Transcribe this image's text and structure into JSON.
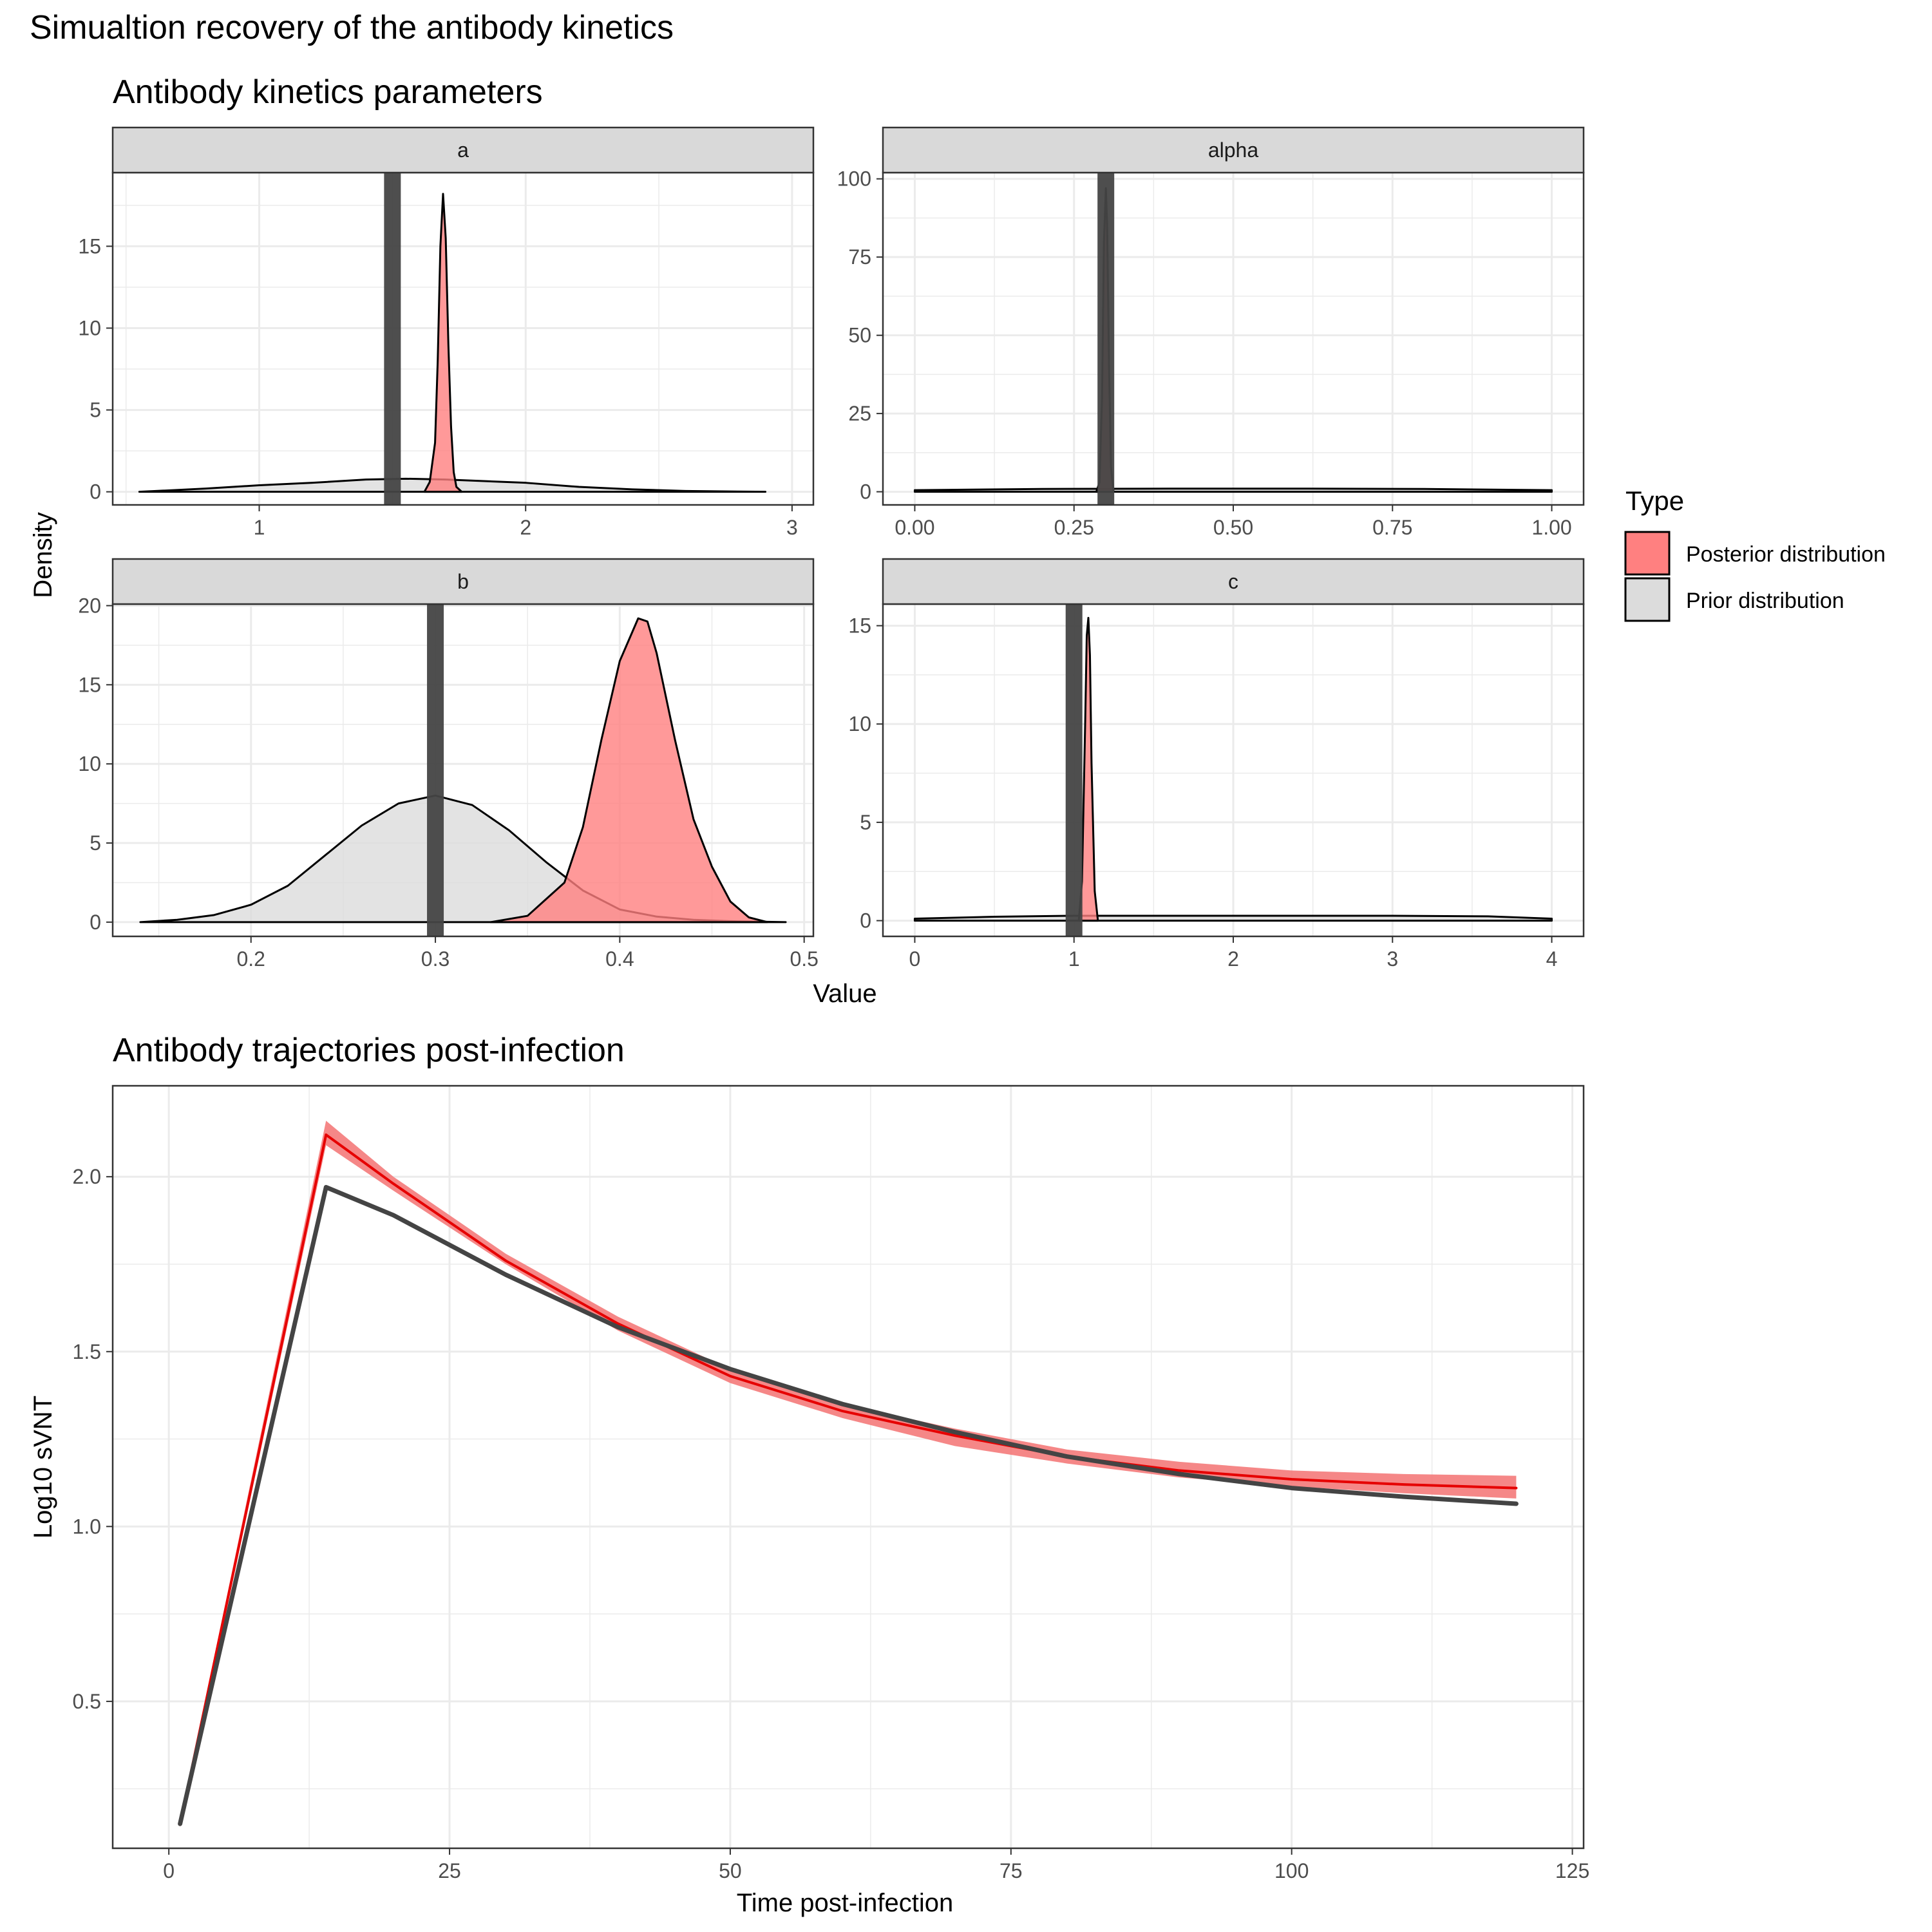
{
  "figure": {
    "title": "Simualtion recovery of the antibody kinetics",
    "top_subtitle": "Antibody kinetics parameters",
    "bottom_subtitle": "Antibody trajectories post-infection"
  },
  "legend": {
    "title": "Type",
    "items": [
      {
        "label": "Posterior distribution",
        "color": "#ff8080"
      },
      {
        "label": "Prior distribution",
        "color": "#dcdcdc"
      }
    ]
  },
  "colors": {
    "posterior_fill": "#ff8080",
    "prior_fill": "#dcdcdc",
    "truth_line": "#444444",
    "posterior_line": "#e60000",
    "ribbon": "#f47a7a",
    "strip": "#d9d9d9",
    "grid": "#ebebeb"
  },
  "chart_data": [
    {
      "type": "area",
      "subtitle": "Antibody kinetics parameters",
      "xlabel": "Value",
      "ylabel": "Density",
      "grid": true,
      "legend_position": "right",
      "facets": [
        {
          "strip": "a",
          "xlim": [
            0.45,
            3.08
          ],
          "ylim": [
            -0.8,
            19.5
          ],
          "xticks": [
            1,
            2,
            3
          ],
          "xtick_labels": [
            "1",
            "2",
            "3"
          ],
          "yticks": [
            0,
            5,
            10,
            15
          ],
          "ytick_labels": [
            "0",
            "5",
            "10",
            "15"
          ],
          "true_value": 1.5,
          "prior": {
            "x": [
              0.55,
              0.8,
              1.0,
              1.2,
              1.4,
              1.55,
              1.7,
              1.85,
              2.0,
              2.2,
              2.4,
              2.6,
              2.9
            ],
            "y": [
              0.0,
              0.2,
              0.4,
              0.55,
              0.75,
              0.8,
              0.75,
              0.65,
              0.55,
              0.3,
              0.15,
              0.05,
              0.0
            ]
          },
          "posterior": {
            "x": [
              1.62,
              1.64,
              1.66,
              1.67,
              1.68,
              1.69,
              1.7,
              1.71,
              1.72,
              1.73,
              1.74,
              1.76
            ],
            "y": [
              0.0,
              0.6,
              3.0,
              8.0,
              15.0,
              18.2,
              15.5,
              9.0,
              4.0,
              1.2,
              0.3,
              0.0
            ]
          }
        },
        {
          "strip": "alpha",
          "xlim": [
            -0.05,
            1.05
          ],
          "ylim": [
            -4.2,
            102
          ],
          "xticks": [
            0.0,
            0.25,
            0.5,
            0.75,
            1.0
          ],
          "xtick_labels": [
            "0.00",
            "0.25",
            "0.50",
            "0.75",
            "1.00"
          ],
          "yticks": [
            0,
            25,
            50,
            75,
            100
          ],
          "ytick_labels": [
            "0",
            "25",
            "50",
            "75",
            "100"
          ],
          "true_value": 0.3,
          "prior": {
            "x": [
              0.0,
              0.2,
              0.4,
              0.6,
              0.8,
              1.0
            ],
            "y": [
              0.5,
              0.9,
              1.0,
              1.0,
              0.9,
              0.5
            ]
          },
          "posterior": {
            "x": [
              0.285,
              0.29,
              0.294,
              0.297,
              0.3,
              0.302,
              0.305,
              0.308,
              0.312
            ],
            "y": [
              0.0,
              3.0,
              30.0,
              80.0,
              97.0,
              85.0,
              40.0,
              8.0,
              0.0
            ]
          }
        },
        {
          "strip": "b",
          "xlim": [
            0.125,
            0.505
          ],
          "ylim": [
            -0.9,
            20.1
          ],
          "xticks": [
            0.2,
            0.3,
            0.4,
            0.5
          ],
          "xtick_labels": [
            "0.2",
            "0.3",
            "0.4",
            "0.5"
          ],
          "yticks": [
            0,
            5,
            10,
            15,
            20
          ],
          "ytick_labels": [
            "0",
            "5",
            "10",
            "15",
            "20"
          ],
          "true_value": 0.3,
          "prior": {
            "x": [
              0.14,
              0.16,
              0.18,
              0.2,
              0.22,
              0.24,
              0.26,
              0.28,
              0.3,
              0.32,
              0.34,
              0.36,
              0.38,
              0.4,
              0.42,
              0.44,
              0.46,
              0.48,
              0.49
            ],
            "y": [
              0.0,
              0.15,
              0.45,
              1.1,
              2.3,
              4.2,
              6.1,
              7.5,
              8.0,
              7.4,
              5.8,
              3.8,
              2.0,
              0.8,
              0.35,
              0.15,
              0.06,
              0.02,
              0.0
            ]
          },
          "posterior": {
            "x": [
              0.33,
              0.35,
              0.37,
              0.38,
              0.39,
              0.4,
              0.41,
              0.415,
              0.42,
              0.43,
              0.44,
              0.45,
              0.46,
              0.47,
              0.48
            ],
            "y": [
              0.0,
              0.4,
              2.5,
              6.0,
              11.5,
              16.5,
              19.2,
              19.0,
              17.0,
              11.5,
              6.5,
              3.5,
              1.3,
              0.3,
              0.0
            ]
          }
        },
        {
          "strip": "c",
          "xlim": [
            -0.2,
            4.2
          ],
          "ylim": [
            -0.8,
            16.1
          ],
          "xticks": [
            0,
            1,
            2,
            3,
            4
          ],
          "xtick_labels": [
            "0",
            "1",
            "2",
            "3",
            "4"
          ],
          "yticks": [
            0,
            5,
            10,
            15
          ],
          "ytick_labels": [
            "0",
            "5",
            "10",
            "15"
          ],
          "true_value": 1.0,
          "prior": {
            "x": [
              0.0,
              0.5,
              1.0,
              2.0,
              3.0,
              3.6,
              4.0
            ],
            "y": [
              0.1,
              0.2,
              0.25,
              0.25,
              0.25,
              0.22,
              0.1
            ]
          },
          "posterior": {
            "x": [
              1.03,
              1.05,
              1.07,
              1.08,
              1.09,
              1.1,
              1.11,
              1.13,
              1.15
            ],
            "y": [
              0.0,
              2.0,
              10.0,
              14.5,
              15.4,
              13.5,
              8.0,
              1.5,
              0.0
            ]
          }
        }
      ]
    },
    {
      "type": "line",
      "subtitle": "Antibody trajectories post-infection",
      "xlabel": "Time post-infection",
      "ylabel": "Log10 sVNT",
      "grid": true,
      "xlim": [
        -5,
        126
      ],
      "ylim": [
        0.08,
        2.26
      ],
      "xticks": [
        0,
        25,
        50,
        75,
        100,
        125
      ],
      "xtick_labels": [
        "0",
        "25",
        "50",
        "75",
        "100",
        "125"
      ],
      "yticks": [
        0.5,
        1.0,
        1.5,
        2.0
      ],
      "ytick_labels": [
        "0.5",
        "1.0",
        "1.5",
        "2.0"
      ],
      "series": [
        {
          "role": "posterior",
          "x": [
            1,
            14,
            20,
            30,
            40,
            50,
            60,
            70,
            80,
            90,
            100,
            110,
            120
          ],
          "y": [
            0.15,
            2.12,
            1.98,
            1.76,
            1.58,
            1.43,
            1.33,
            1.26,
            1.2,
            1.16,
            1.135,
            1.12,
            1.11
          ],
          "lower": [
            0.14,
            2.09,
            1.96,
            1.75,
            1.56,
            1.41,
            1.31,
            1.23,
            1.18,
            1.14,
            1.115,
            1.095,
            1.08
          ],
          "upper": [
            0.16,
            2.16,
            2.0,
            1.78,
            1.6,
            1.45,
            1.35,
            1.28,
            1.22,
            1.185,
            1.16,
            1.15,
            1.145
          ]
        },
        {
          "role": "truth",
          "x": [
            1,
            14,
            20,
            30,
            40,
            50,
            60,
            70,
            80,
            90,
            100,
            110,
            120
          ],
          "y": [
            0.15,
            1.97,
            1.89,
            1.72,
            1.57,
            1.45,
            1.35,
            1.27,
            1.2,
            1.15,
            1.11,
            1.085,
            1.065
          ]
        }
      ]
    }
  ]
}
